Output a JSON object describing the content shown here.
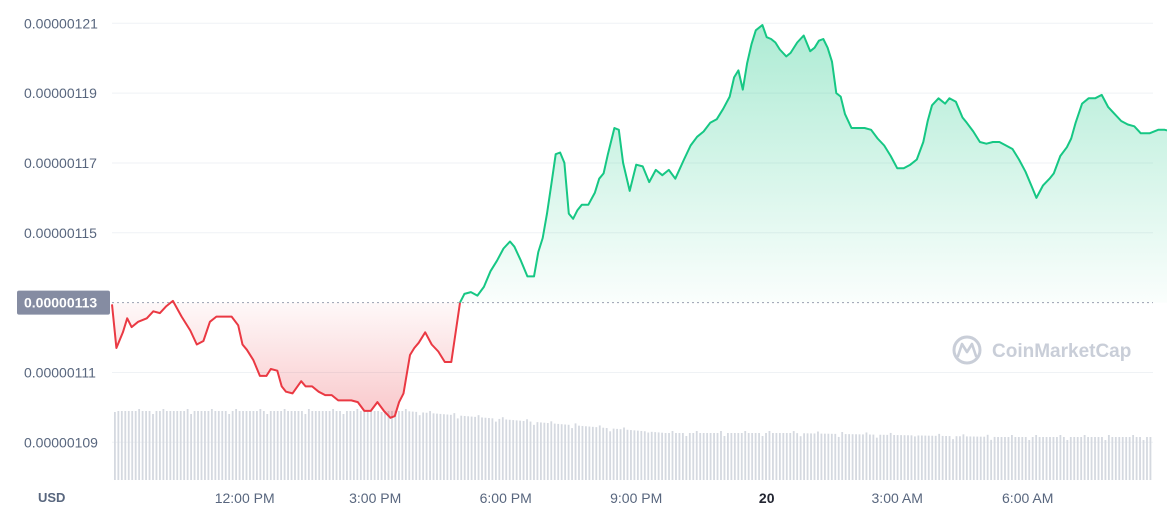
{
  "chart_data": {
    "type": "area",
    "currency_label": "USD",
    "watermark": "CoinMarketCap",
    "reference_label": "0.00000113",
    "reference_value": 1.13e-06,
    "ylim": [
      1.0792e-06,
      1.2138e-06
    ],
    "y_ticks": [
      {
        "label": "0.00000121",
        "value": 1.21e-06
      },
      {
        "label": "0.00000119",
        "value": 1.19e-06
      },
      {
        "label": "0.00000117",
        "value": 1.17e-06
      },
      {
        "label": "0.00000115",
        "value": 1.15e-06
      },
      {
        "label": "0.00000111",
        "value": 1.11e-06
      },
      {
        "label": "0.00000109",
        "value": 1.09e-06
      }
    ],
    "x_ticks": [
      {
        "label": "12:00 PM",
        "t": 4,
        "bold": false
      },
      {
        "label": "3:00 PM",
        "t": 7,
        "bold": false
      },
      {
        "label": "6:00 PM",
        "t": 10,
        "bold": false
      },
      {
        "label": "9:00 PM",
        "t": 13,
        "bold": false
      },
      {
        "label": "20",
        "t": 16,
        "bold": true
      },
      {
        "label": "3:00 AM",
        "t": 19,
        "bold": false
      },
      {
        "label": "6:00 AM",
        "t": 22,
        "bold": false
      }
    ],
    "x_range": [
      0.95,
      24.88
    ],
    "colors": {
      "up": "#16c784",
      "down": "#ea3943",
      "volume": "#d5d9e0",
      "grid": "#eff2f5",
      "badge": "#858ca2"
    },
    "series": [
      {
        "values": [
          [
            0.95,
            1.1295e-06
          ],
          [
            1.05,
            1.117e-06
          ],
          [
            1.2,
            1.1215e-06
          ],
          [
            1.3,
            1.1255e-06
          ],
          [
            1.4,
            1.123e-06
          ],
          [
            1.55,
            1.1245e-06
          ],
          [
            1.75,
            1.1255e-06
          ],
          [
            1.9,
            1.1275e-06
          ],
          [
            2.05,
            1.127e-06
          ],
          [
            2.2,
            1.129e-06
          ],
          [
            2.35,
            1.1305e-06
          ],
          [
            2.55,
            1.126e-06
          ],
          [
            2.75,
            1.122e-06
          ],
          [
            2.9,
            1.118e-06
          ],
          [
            3.05,
            1.119e-06
          ],
          [
            3.2,
            1.1245e-06
          ],
          [
            3.35,
            1.126e-06
          ],
          [
            3.55,
            1.126e-06
          ],
          [
            3.7,
            1.126e-06
          ],
          [
            3.85,
            1.1235e-06
          ],
          [
            3.95,
            1.118e-06
          ],
          [
            4.05,
            1.1165e-06
          ],
          [
            4.2,
            1.1135e-06
          ],
          [
            4.35,
            1.109e-06
          ],
          [
            4.5,
            1.109e-06
          ],
          [
            4.6,
            1.111e-06
          ],
          [
            4.75,
            1.1105e-06
          ],
          [
            4.85,
            1.106e-06
          ],
          [
            4.95,
            1.1045e-06
          ],
          [
            5.1,
            1.104e-06
          ],
          [
            5.3,
            1.1075e-06
          ],
          [
            5.4,
            1.106e-06
          ],
          [
            5.55,
            1.106e-06
          ],
          [
            5.7,
            1.1045e-06
          ],
          [
            5.85,
            1.1035e-06
          ],
          [
            6.0,
            1.1035e-06
          ],
          [
            6.15,
            1.102e-06
          ],
          [
            6.3,
            1.102e-06
          ],
          [
            6.45,
            1.102e-06
          ],
          [
            6.6,
            1.1015e-06
          ],
          [
            6.75,
            1.099e-06
          ],
          [
            6.9,
            1.099e-06
          ],
          [
            7.05,
            1.1015e-06
          ],
          [
            7.2,
            1.099e-06
          ],
          [
            7.35,
            1.097e-06
          ],
          [
            7.45,
            1.0975e-06
          ],
          [
            7.55,
            1.1015e-06
          ],
          [
            7.65,
            1.104e-06
          ],
          [
            7.8,
            1.115e-06
          ],
          [
            7.9,
            1.117e-06
          ],
          [
            8.0,
            1.1185e-06
          ],
          [
            8.15,
            1.1215e-06
          ],
          [
            8.3,
            1.118e-06
          ],
          [
            8.45,
            1.116e-06
          ],
          [
            8.6,
            1.113e-06
          ],
          [
            8.75,
            1.113e-06
          ],
          [
            8.95,
            1.13e-06
          ]
        ]
      },
      {
        "values": [
          [
            8.95,
            1.13e-06
          ],
          [
            9.05,
            1.1325e-06
          ],
          [
            9.2,
            1.133e-06
          ],
          [
            9.35,
            1.132e-06
          ],
          [
            9.5,
            1.1345e-06
          ],
          [
            9.65,
            1.139e-06
          ],
          [
            9.8,
            1.142e-06
          ],
          [
            9.95,
            1.1455e-06
          ],
          [
            10.1,
            1.1475e-06
          ],
          [
            10.2,
            1.146e-06
          ],
          [
            10.35,
            1.142e-06
          ],
          [
            10.5,
            1.1375e-06
          ],
          [
            10.65,
            1.1375e-06
          ],
          [
            10.75,
            1.1445e-06
          ],
          [
            10.85,
            1.1485e-06
          ],
          [
            10.95,
            1.1555e-06
          ],
          [
            11.05,
            1.164e-06
          ],
          [
            11.15,
            1.1725e-06
          ],
          [
            11.25,
            1.173e-06
          ],
          [
            11.35,
            1.17e-06
          ],
          [
            11.45,
            1.1555e-06
          ],
          [
            11.55,
            1.154e-06
          ],
          [
            11.65,
            1.1565e-06
          ],
          [
            11.75,
            1.158e-06
          ],
          [
            11.9,
            1.158e-06
          ],
          [
            12.05,
            1.1615e-06
          ],
          [
            12.15,
            1.1655e-06
          ],
          [
            12.25,
            1.167e-06
          ],
          [
            12.35,
            1.1725e-06
          ],
          [
            12.5,
            1.18e-06
          ],
          [
            12.6,
            1.1795e-06
          ],
          [
            12.7,
            1.17e-06
          ],
          [
            12.85,
            1.162e-06
          ],
          [
            13.0,
            1.1695e-06
          ],
          [
            13.15,
            1.169e-06
          ],
          [
            13.3,
            1.1645e-06
          ],
          [
            13.45,
            1.168e-06
          ],
          [
            13.6,
            1.1665e-06
          ],
          [
            13.75,
            1.168e-06
          ],
          [
            13.9,
            1.1655e-06
          ],
          [
            14.1,
            1.171e-06
          ],
          [
            14.25,
            1.175e-06
          ],
          [
            14.4,
            1.1775e-06
          ],
          [
            14.55,
            1.179e-06
          ],
          [
            14.7,
            1.1815e-06
          ],
          [
            14.85,
            1.1825e-06
          ],
          [
            15.0,
            1.1855e-06
          ],
          [
            15.15,
            1.189e-06
          ],
          [
            15.25,
            1.1945e-06
          ],
          [
            15.35,
            1.1965e-06
          ],
          [
            15.45,
            1.191e-06
          ],
          [
            15.55,
            1.1985e-06
          ],
          [
            15.65,
            1.204e-06
          ],
          [
            15.75,
            1.208e-06
          ],
          [
            15.9,
            1.2095e-06
          ],
          [
            16.0,
            1.206e-06
          ],
          [
            16.1,
            1.2055e-06
          ],
          [
            16.2,
            1.2045e-06
          ],
          [
            16.3,
            1.2025e-06
          ],
          [
            16.45,
            1.2005e-06
          ],
          [
            16.55,
            1.2015e-06
          ],
          [
            16.7,
            1.2045e-06
          ],
          [
            16.85,
            1.2065e-06
          ],
          [
            17.0,
            1.202e-06
          ],
          [
            17.1,
            1.203e-06
          ],
          [
            17.2,
            1.205e-06
          ],
          [
            17.3,
            1.2055e-06
          ],
          [
            17.4,
            1.203e-06
          ],
          [
            17.5,
            1.199e-06
          ],
          [
            17.6,
            1.19e-06
          ],
          [
            17.7,
            1.189e-06
          ],
          [
            17.8,
            1.184e-06
          ],
          [
            17.95,
            1.18e-06
          ],
          [
            18.1,
            1.18e-06
          ],
          [
            18.25,
            1.18e-06
          ],
          [
            18.4,
            1.1795e-06
          ],
          [
            18.55,
            1.177e-06
          ],
          [
            18.7,
            1.175e-06
          ],
          [
            18.85,
            1.172e-06
          ],
          [
            19.0,
            1.1685e-06
          ],
          [
            19.15,
            1.1685e-06
          ],
          [
            19.3,
            1.1695e-06
          ],
          [
            19.45,
            1.171e-06
          ],
          [
            19.6,
            1.176e-06
          ],
          [
            19.7,
            1.182e-06
          ],
          [
            19.8,
            1.1865e-06
          ],
          [
            19.95,
            1.1885e-06
          ],
          [
            20.1,
            1.187e-06
          ],
          [
            20.2,
            1.1885e-06
          ],
          [
            20.35,
            1.1875e-06
          ],
          [
            20.5,
            1.183e-06
          ],
          [
            20.6,
            1.1815e-06
          ],
          [
            20.75,
            1.179e-06
          ],
          [
            20.9,
            1.176e-06
          ],
          [
            21.05,
            1.1755e-06
          ],
          [
            21.2,
            1.176e-06
          ],
          [
            21.35,
            1.176e-06
          ],
          [
            21.5,
            1.175e-06
          ],
          [
            21.65,
            1.174e-06
          ],
          [
            21.8,
            1.171e-06
          ],
          [
            21.95,
            1.1675e-06
          ],
          [
            22.1,
            1.163e-06
          ],
          [
            22.2,
            1.16e-06
          ],
          [
            22.35,
            1.1635e-06
          ],
          [
            22.5,
            1.1655e-06
          ],
          [
            22.6,
            1.167e-06
          ],
          [
            22.75,
            1.172e-06
          ],
          [
            22.9,
            1.1745e-06
          ],
          [
            23.0,
            1.177e-06
          ],
          [
            23.1,
            1.1815e-06
          ],
          [
            23.25,
            1.187e-06
          ],
          [
            23.4,
            1.1885e-06
          ],
          [
            23.55,
            1.1885e-06
          ],
          [
            23.7,
            1.1895e-06
          ],
          [
            23.85,
            1.186e-06
          ],
          [
            24.0,
            1.184e-06
          ],
          [
            24.15,
            1.182e-06
          ],
          [
            24.3,
            1.181e-06
          ],
          [
            24.45,
            1.1805e-06
          ],
          [
            24.6,
            1.1785e-06
          ],
          [
            24.8,
            1.1785e-06
          ],
          [
            25.0,
            1.1795e-06
          ],
          [
            25.15,
            1.1795e-06
          ],
          [
            25.3,
            1.179e-06
          ]
        ]
      }
    ]
  }
}
